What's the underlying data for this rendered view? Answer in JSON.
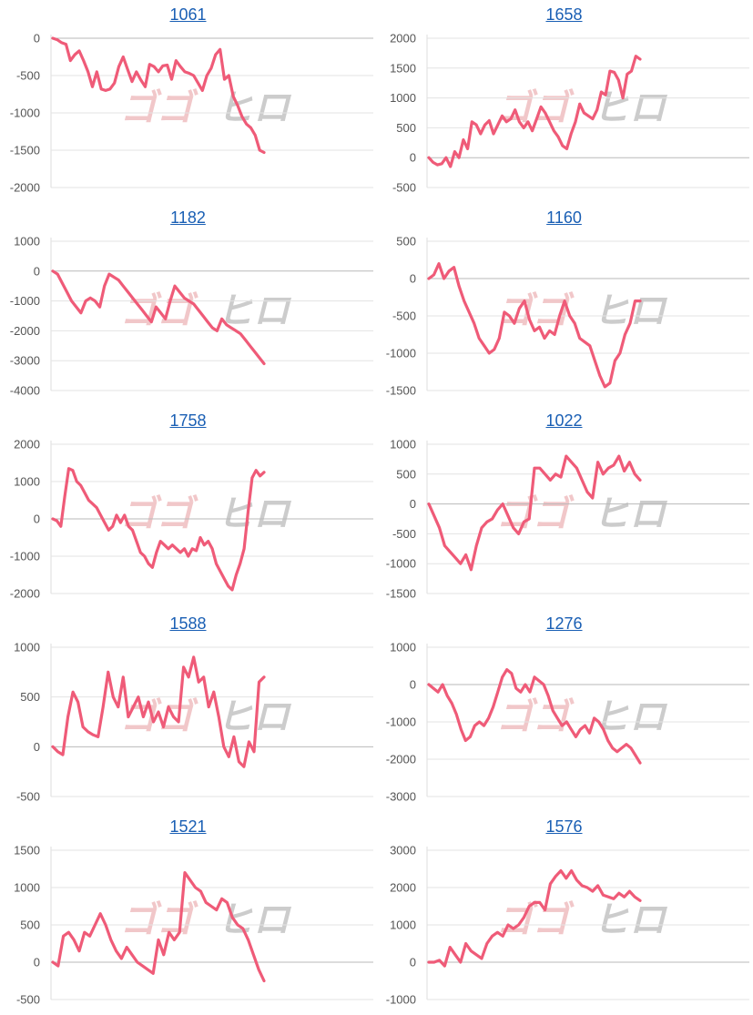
{
  "chart_data": [
    {
      "type": "line",
      "title": "1061",
      "ylim": [
        -2000,
        0
      ],
      "yticks": [
        0,
        -500,
        -1000,
        -1500,
        -2000
      ],
      "values": [
        0,
        -20,
        -60,
        -80,
        -300,
        -220,
        -170,
        -300,
        -450,
        -650,
        -450,
        -680,
        -700,
        -680,
        -600,
        -380,
        -250,
        -420,
        -580,
        -450,
        -560,
        -650,
        -350,
        -380,
        -450,
        -370,
        -360,
        -550,
        -300,
        -380,
        -450,
        -470,
        -500,
        -600,
        -700,
        -500,
        -400,
        -220,
        -150,
        -550,
        -500,
        -780,
        -900,
        -1050,
        -1150,
        -1200,
        -1300,
        -1500,
        -1530
      ]
    },
    {
      "type": "line",
      "title": "1658",
      "ylim": [
        -500,
        2000
      ],
      "yticks": [
        2000,
        1500,
        1000,
        500,
        0,
        -500
      ],
      "values": [
        0,
        -80,
        -120,
        -100,
        0,
        -150,
        100,
        0,
        300,
        150,
        600,
        550,
        400,
        550,
        620,
        400,
        550,
        700,
        600,
        650,
        800,
        600,
        500,
        600,
        450,
        650,
        850,
        750,
        600,
        450,
        350,
        200,
        150,
        400,
        600,
        900,
        750,
        700,
        650,
        800,
        1100,
        1050,
        1450,
        1430,
        1300,
        1000,
        1400,
        1450,
        1700,
        1650
      ]
    },
    {
      "type": "line",
      "title": "1182",
      "ylim": [
        -4000,
        1000
      ],
      "yticks": [
        1000,
        0,
        -1000,
        -2000,
        -3000,
        -4000
      ],
      "values": [
        0,
        -100,
        -400,
        -700,
        -1000,
        -1200,
        -1400,
        -1000,
        -900,
        -1000,
        -1200,
        -500,
        -100,
        -200,
        -300,
        -500,
        -700,
        -900,
        -1100,
        -1300,
        -1500,
        -1700,
        -1200,
        -1400,
        -1600,
        -1000,
        -500,
        -700,
        -900,
        -1000,
        -1100,
        -1300,
        -1500,
        -1700,
        -1900,
        -2000,
        -1600,
        -1800,
        -1900,
        -2000,
        -2100,
        -2300,
        -2500,
        -2700,
        -2900,
        -3100
      ]
    },
    {
      "type": "line",
      "title": "1160",
      "ylim": [
        -1500,
        500
      ],
      "yticks": [
        500,
        0,
        -500,
        -1000,
        -1500
      ],
      "values": [
        0,
        50,
        200,
        0,
        100,
        150,
        -100,
        -300,
        -450,
        -600,
        -800,
        -900,
        -1000,
        -950,
        -800,
        -450,
        -500,
        -600,
        -400,
        -300,
        -550,
        -700,
        -650,
        -800,
        -700,
        -750,
        -500,
        -300,
        -500,
        -600,
        -800,
        -850,
        -900,
        -1100,
        -1300,
        -1450,
        -1400,
        -1100,
        -1000,
        -750,
        -600,
        -300,
        -300
      ]
    },
    {
      "type": "line",
      "title": "1758",
      "ylim": [
        -2000,
        2000
      ],
      "yticks": [
        2000,
        1000,
        0,
        -1000,
        -2000
      ],
      "values": [
        0,
        -50,
        -200,
        600,
        1350,
        1300,
        1000,
        900,
        700,
        500,
        400,
        300,
        100,
        -100,
        -300,
        -200,
        100,
        -100,
        100,
        -200,
        -300,
        -600,
        -900,
        -1000,
        -1200,
        -1300,
        -900,
        -600,
        -700,
        -800,
        -700,
        -800,
        -900,
        -800,
        -1000,
        -800,
        -850,
        -500,
        -700,
        -600,
        -800,
        -1200,
        -1400,
        -1600,
        -1800,
        -1900,
        -1500,
        -1200,
        -800,
        200,
        1100,
        1300,
        1150,
        1250
      ]
    },
    {
      "type": "line",
      "title": "1022",
      "ylim": [
        -1500,
        1000
      ],
      "yticks": [
        1000,
        500,
        0,
        -500,
        -1000,
        -1500
      ],
      "values": [
        0,
        -200,
        -400,
        -700,
        -800,
        -900,
        -1000,
        -850,
        -1100,
        -700,
        -400,
        -300,
        -250,
        -100,
        0,
        -200,
        -400,
        -500,
        -300,
        -250,
        600,
        600,
        500,
        400,
        500,
        450,
        800,
        700,
        600,
        400,
        200,
        100,
        700,
        500,
        600,
        650,
        800,
        550,
        700,
        500,
        400
      ]
    },
    {
      "type": "line",
      "title": "1588",
      "ylim": [
        -500,
        1000
      ],
      "yticks": [
        1000,
        500,
        0,
        -500
      ],
      "values": [
        0,
        -50,
        -80,
        300,
        550,
        450,
        200,
        150,
        120,
        100,
        400,
        750,
        500,
        400,
        700,
        300,
        400,
        500,
        300,
        450,
        250,
        350,
        200,
        400,
        300,
        250,
        800,
        700,
        900,
        650,
        700,
        400,
        550,
        300,
        0,
        -100,
        100,
        -150,
        -200,
        50,
        -50,
        650,
        700
      ]
    },
    {
      "type": "line",
      "title": "1276",
      "ylim": [
        -3000,
        1000
      ],
      "yticks": [
        1000,
        0,
        -1000,
        -2000,
        -3000
      ],
      "values": [
        0,
        -100,
        -200,
        0,
        -300,
        -500,
        -800,
        -1200,
        -1500,
        -1400,
        -1100,
        -1000,
        -1100,
        -900,
        -600,
        -200,
        200,
        400,
        300,
        -100,
        -200,
        0,
        -200,
        200,
        100,
        0,
        -300,
        -700,
        -900,
        -1100,
        -1000,
        -1200,
        -1400,
        -1200,
        -1100,
        -1300,
        -900,
        -1000,
        -1200,
        -1500,
        -1700,
        -1800,
        -1700,
        -1600,
        -1700,
        -1900,
        -2100
      ]
    },
    {
      "type": "line",
      "title": "1521",
      "ylim": [
        -500,
        1500
      ],
      "yticks": [
        1500,
        1000,
        500,
        0,
        -500
      ],
      "values": [
        0,
        -50,
        350,
        400,
        300,
        150,
        400,
        350,
        500,
        650,
        500,
        300,
        150,
        50,
        200,
        100,
        0,
        -50,
        -100,
        -150,
        300,
        100,
        400,
        300,
        400,
        1200,
        1100,
        1000,
        950,
        800,
        750,
        700,
        850,
        800,
        600,
        500,
        450,
        300,
        100,
        -100,
        -250
      ]
    },
    {
      "type": "line",
      "title": "1576",
      "ylim": [
        -1000,
        3000
      ],
      "yticks": [
        3000,
        2000,
        1000,
        0,
        -1000
      ],
      "values": [
        0,
        0,
        50,
        -100,
        400,
        200,
        0,
        500,
        300,
        200,
        100,
        500,
        700,
        800,
        700,
        1000,
        900,
        1000,
        1200,
        1500,
        1600,
        1600,
        1400,
        2100,
        2300,
        2450,
        2250,
        2450,
        2200,
        2050,
        2000,
        1900,
        2050,
        1800,
        1750,
        1700,
        1850,
        1750,
        1900,
        1750,
        1650
      ]
    }
  ],
  "watermark": {
    "part1": "ゴゴ",
    "part2": "ヒロ"
  },
  "colors": {
    "line": "#ef5b78",
    "title": "#1a5fb4"
  }
}
